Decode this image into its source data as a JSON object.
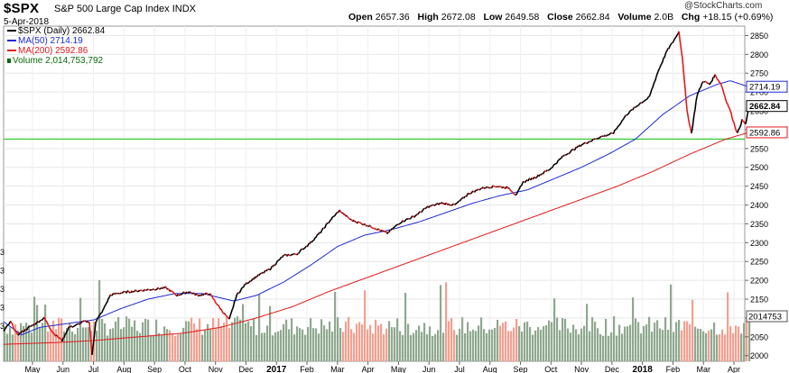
{
  "header": {
    "symbol": "$SPX",
    "name": "S&P 500 Large Cap Index",
    "exchange": "INDX",
    "date": "5-Apr-2018",
    "copyright": "@StockCharts.com",
    "open_label": "Open",
    "open": "2657.36",
    "high_label": "High",
    "high": "2672.08",
    "low_label": "Low",
    "low": "2649.58",
    "close_label": "Close",
    "close": "2662.84",
    "volume_label": "Volume",
    "volume": "2.0B",
    "chg_label": "Chg",
    "chg": "+18.15 (+0.69%)"
  },
  "legend": {
    "spx": "$SPX (Daily) 2662.84",
    "ma50": "MA(50) 2714.19",
    "ma200": "MA(200) 2592.86",
    "volume": "Volume 2,014,753,792"
  },
  "colors": {
    "up": "#000000",
    "down": "#e01a1a",
    "ma50": "#1f2bd1",
    "ma200": "#e01a1a",
    "vol_up": "#8fa88f",
    "vol_down": "#f2a090",
    "hline": "#33cc33",
    "grid": "#e6e6e6"
  },
  "chart_data": {
    "type": "line",
    "y_axis": {
      "ticks": [
        2000,
        2050,
        2100,
        2150,
        2200,
        2250,
        2300,
        2350,
        2400,
        2450,
        2500,
        2550,
        2600,
        2650,
        2700,
        2750,
        2800,
        2850
      ],
      "range": [
        1985,
        2875
      ]
    },
    "x_axis": {
      "labels": [
        "May",
        "Jun",
        "Jul",
        "Aug",
        "Sep",
        "Oct",
        "Nov",
        "Dec",
        "2017",
        "Feb",
        "Mar",
        "Apr",
        "May",
        "Jun",
        "Jul",
        "Aug",
        "Sep",
        "Oct",
        "Nov",
        "Dec",
        "2018",
        "Feb",
        "Mar",
        "Apr"
      ],
      "bold": [
        "2017",
        "2018"
      ]
    },
    "price_labels": {
      "last": "2662.84",
      "ma50": "2714.19",
      "ma200": "2592.86"
    },
    "volume_label": "2014753",
    "left_fragments": [
      "3",
      "3",
      "3",
      "3",
      "3"
    ],
    "horizontal_line": 2575,
    "price_anchors": [
      [
        0,
        2065
      ],
      [
        8,
        2090
      ],
      [
        15,
        2055
      ],
      [
        25,
        2070
      ],
      [
        35,
        2085
      ],
      [
        45,
        2100
      ],
      [
        55,
        2060
      ],
      [
        65,
        2040
      ],
      [
        72,
        2075
      ],
      [
        80,
        2080
      ],
      [
        88,
        2090
      ],
      [
        95,
        2090
      ],
      [
        98,
        2000
      ],
      [
        102,
        2090
      ],
      [
        110,
        2120
      ],
      [
        118,
        2160
      ],
      [
        125,
        2165
      ],
      [
        140,
        2170
      ],
      [
        160,
        2175
      ],
      [
        180,
        2180
      ],
      [
        192,
        2160
      ],
      [
        205,
        2170
      ],
      [
        215,
        2160
      ],
      [
        228,
        2165
      ],
      [
        240,
        2125
      ],
      [
        250,
        2095
      ],
      [
        258,
        2160
      ],
      [
        268,
        2190
      ],
      [
        280,
        2210
      ],
      [
        295,
        2230
      ],
      [
        310,
        2265
      ],
      [
        325,
        2270
      ],
      [
        340,
        2300
      ],
      [
        352,
        2330
      ],
      [
        362,
        2360
      ],
      [
        372,
        2385
      ],
      [
        385,
        2360
      ],
      [
        398,
        2350
      ],
      [
        410,
        2340
      ],
      [
        425,
        2325
      ],
      [
        440,
        2355
      ],
      [
        455,
        2370
      ],
      [
        470,
        2395
      ],
      [
        485,
        2405
      ],
      [
        500,
        2400
      ],
      [
        515,
        2430
      ],
      [
        530,
        2445
      ],
      [
        545,
        2450
      ],
      [
        560,
        2445
      ],
      [
        568,
        2425
      ],
      [
        575,
        2460
      ],
      [
        590,
        2475
      ],
      [
        605,
        2495
      ],
      [
        620,
        2530
      ],
      [
        640,
        2560
      ],
      [
        660,
        2580
      ],
      [
        675,
        2590
      ],
      [
        690,
        2640
      ],
      [
        705,
        2670
      ],
      [
        715,
        2685
      ],
      [
        725,
        2755
      ],
      [
        735,
        2810
      ],
      [
        742,
        2835
      ],
      [
        748,
        2860
      ],
      [
        752,
        2790
      ],
      [
        757,
        2650
      ],
      [
        762,
        2590
      ],
      [
        768,
        2690
      ],
      [
        775,
        2730
      ],
      [
        782,
        2720
      ],
      [
        788,
        2745
      ],
      [
        795,
        2720
      ],
      [
        800,
        2680
      ],
      [
        805,
        2650
      ],
      [
        810,
        2610
      ],
      [
        813,
        2590
      ],
      [
        818,
        2625
      ],
      [
        822,
        2615
      ],
      [
        826,
        2662
      ]
    ],
    "ma50_anchors": [
      [
        0,
        2090
      ],
      [
        20,
        2055
      ],
      [
        40,
        2075
      ],
      [
        70,
        2085
      ],
      [
        100,
        2095
      ],
      [
        130,
        2125
      ],
      [
        160,
        2150
      ],
      [
        190,
        2165
      ],
      [
        220,
        2165
      ],
      [
        255,
        2145
      ],
      [
        280,
        2160
      ],
      [
        310,
        2195
      ],
      [
        340,
        2240
      ],
      [
        370,
        2290
      ],
      [
        400,
        2320
      ],
      [
        430,
        2335
      ],
      [
        460,
        2355
      ],
      [
        490,
        2380
      ],
      [
        520,
        2405
      ],
      [
        550,
        2425
      ],
      [
        580,
        2440
      ],
      [
        610,
        2470
      ],
      [
        640,
        2500
      ],
      [
        670,
        2535
      ],
      [
        700,
        2575
      ],
      [
        730,
        2640
      ],
      [
        760,
        2690
      ],
      [
        790,
        2720
      ],
      [
        805,
        2730
      ],
      [
        820,
        2718
      ],
      [
        826,
        2714
      ]
    ],
    "ma200_anchors": [
      [
        0,
        2030
      ],
      [
        60,
        2035
      ],
      [
        100,
        2040
      ],
      [
        150,
        2050
      ],
      [
        200,
        2060
      ],
      [
        240,
        2075
      ],
      [
        280,
        2100
      ],
      [
        320,
        2130
      ],
      [
        360,
        2170
      ],
      [
        400,
        2205
      ],
      [
        440,
        2240
      ],
      [
        480,
        2275
      ],
      [
        520,
        2310
      ],
      [
        560,
        2345
      ],
      [
        600,
        2380
      ],
      [
        640,
        2415
      ],
      [
        680,
        2450
      ],
      [
        720,
        2490
      ],
      [
        760,
        2535
      ],
      [
        800,
        2575
      ],
      [
        826,
        2593
      ]
    ]
  }
}
